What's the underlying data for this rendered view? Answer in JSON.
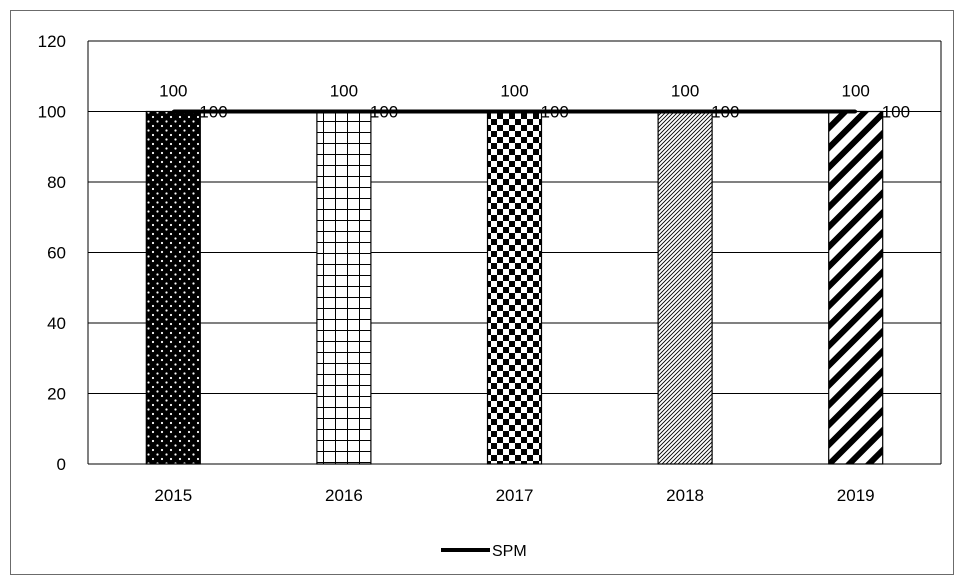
{
  "chart_data": {
    "type": "bar",
    "categories": [
      "2015",
      "2016",
      "2017",
      "2018",
      "2019"
    ],
    "values": [
      100,
      100,
      100,
      100,
      100
    ],
    "bar_labels": [
      "100",
      "100",
      "100",
      "100",
      "100"
    ],
    "series": [
      {
        "name": "SPM",
        "type": "line",
        "values": [
          100,
          100,
          100,
          100,
          100
        ],
        "labels": [
          "100",
          "100",
          "100",
          "100",
          "100"
        ]
      }
    ],
    "yticks": [
      "0",
      "20",
      "40",
      "60",
      "80",
      "100",
      "120"
    ],
    "ylim": [
      0,
      120
    ],
    "grid": true,
    "legend_position": "bottom",
    "bar_patterns": [
      "dots-on-black",
      "grid",
      "checkerboard",
      "fine-diagonal",
      "wide-diagonal"
    ],
    "colors": {
      "bar_ink": "#000000",
      "line": "#000000",
      "grid": "#000000",
      "frame": "#6b6b6b"
    }
  }
}
